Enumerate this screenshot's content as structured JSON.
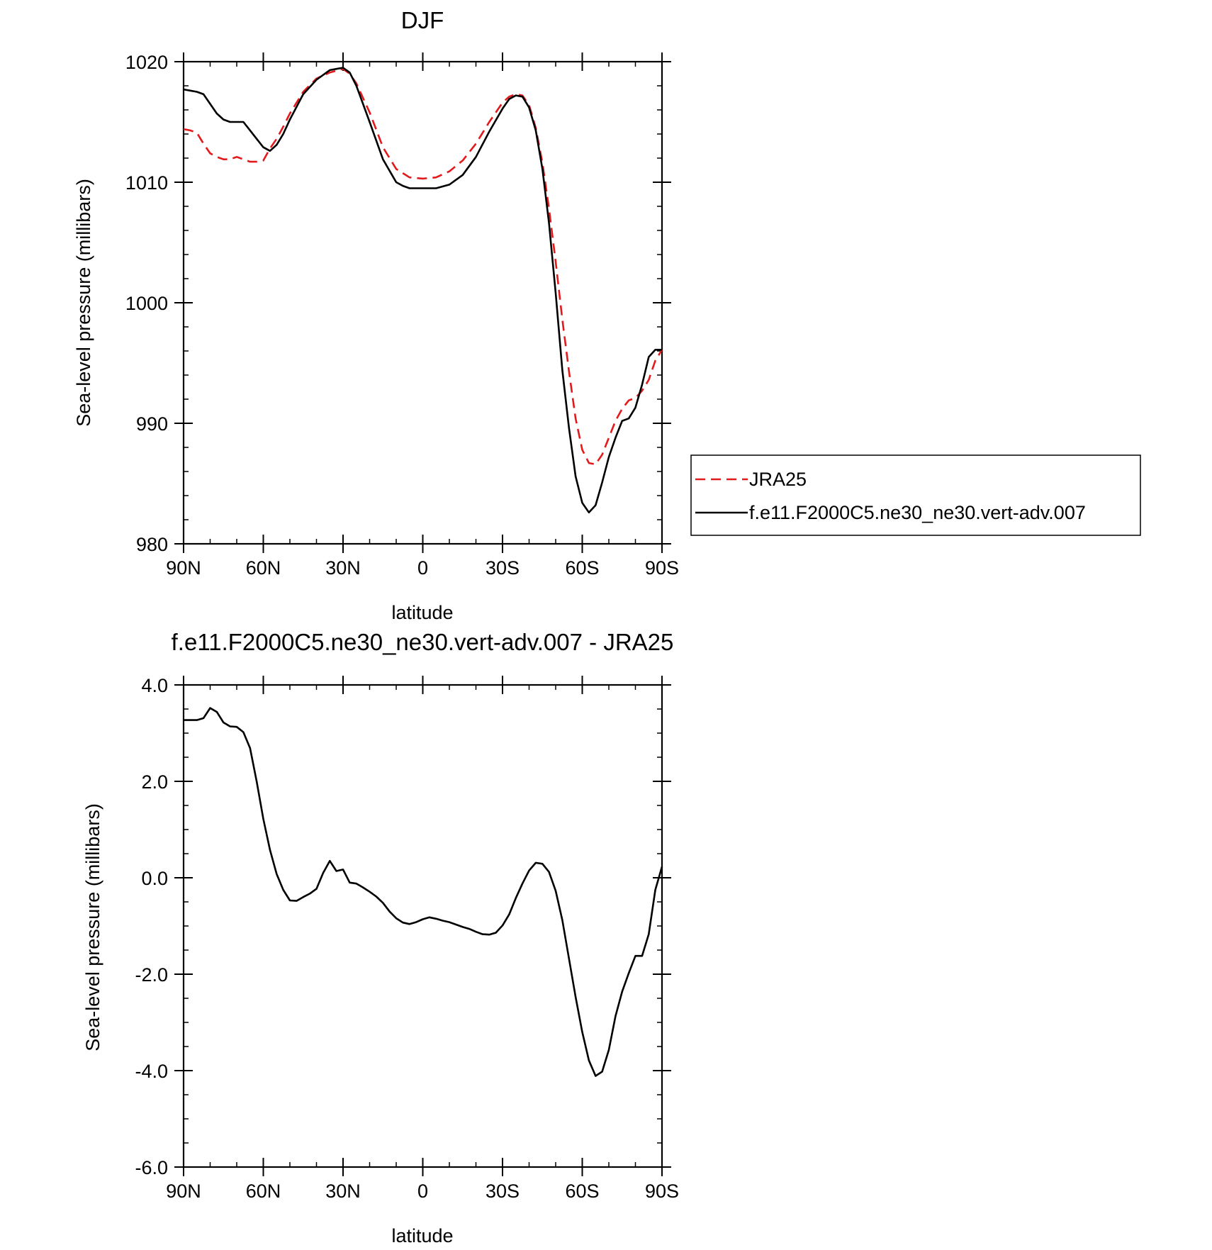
{
  "chart_data": [
    {
      "type": "line",
      "title": "DJF",
      "xlabel": "latitude",
      "ylabel": "Sea-level pressure (millibars)",
      "xlim": [
        90,
        -90
      ],
      "ylim": [
        980,
        1020
      ],
      "xticks": [
        {
          "value": 90,
          "label": "90N"
        },
        {
          "value": 60,
          "label": "60N"
        },
        {
          "value": 30,
          "label": "30N"
        },
        {
          "value": 0,
          "label": "0"
        },
        {
          "value": -30,
          "label": "30S"
        },
        {
          "value": -60,
          "label": "60S"
        },
        {
          "value": -90,
          "label": "90S"
        }
      ],
      "yticks": [
        {
          "value": 1020,
          "label": "1020"
        },
        {
          "value": 1010,
          "label": "1010"
        },
        {
          "value": 1000,
          "label": "1000"
        },
        {
          "value": 990,
          "label": "990"
        },
        {
          "value": 980,
          "label": "980"
        }
      ],
      "grid": false,
      "legend_position": "right",
      "series": [
        {
          "name": "JRA25",
          "color": "#e31a1c",
          "dashed": true,
          "x": [
            90,
            87.5,
            85,
            82.5,
            80,
            77.5,
            75,
            72.5,
            70,
            67.5,
            65,
            62.5,
            60,
            57.5,
            55,
            52.5,
            50,
            45,
            40,
            35,
            30,
            27.5,
            25,
            20,
            15,
            10,
            5,
            0,
            -5,
            -10,
            -15,
            -20,
            -25,
            -30,
            -32.5,
            -35,
            -37.5,
            -40,
            -42.5,
            -45,
            -47.5,
            -50,
            -52.5,
            -55,
            -57.5,
            -60,
            -62.5,
            -65,
            -67.5,
            -70,
            -72.5,
            -75,
            -77.5,
            -80,
            -82.5,
            -85,
            -87.5,
            -90
          ],
          "values": [
            1014.4,
            1014.3,
            1014.1,
            1013.2,
            1012.4,
            1012.1,
            1011.9,
            1011.9,
            1012.1,
            1011.9,
            1011.7,
            1011.7,
            1011.8,
            1012.8,
            1013.6,
            1014.6,
            1015.7,
            1017.5,
            1018.6,
            1019.1,
            1019.4,
            1019.0,
            1018.2,
            1015.8,
            1012.9,
            1011.1,
            1010.4,
            1010.3,
            1010.4,
            1010.9,
            1011.8,
            1013.2,
            1015.0,
            1016.6,
            1017.1,
            1017.3,
            1017.2,
            1016.4,
            1014.5,
            1011.6,
            1007.8,
            1003.4,
            998.6,
            994.3,
            990.4,
            987.8,
            986.7,
            986.6,
            987.4,
            988.8,
            990.2,
            991.2,
            991.9,
            992.1,
            992.7,
            993.6,
            995.2,
            996.1
          ]
        },
        {
          "name": "f.e11.F2000C5.ne30_ne30.vert-adv.007",
          "color": "#000000",
          "dashed": false,
          "x": [
            90,
            87.5,
            85,
            82.5,
            80,
            77.5,
            75,
            72.5,
            70,
            67.5,
            65,
            62.5,
            60,
            57.5,
            55,
            52.5,
            50,
            45,
            40,
            35,
            32.5,
            30,
            27.5,
            25,
            20,
            15,
            10,
            7.5,
            5,
            2.5,
            0,
            -5,
            -10,
            -15,
            -20,
            -25,
            -30,
            -32.5,
            -35,
            -37.5,
            -40,
            -42.5,
            -45,
            -47.5,
            -50,
            -52.5,
            -55,
            -57.5,
            -60,
            -62.5,
            -65,
            -67.5,
            -70,
            -72.5,
            -75,
            -77.5,
            -80,
            -82.5,
            -85,
            -87.5,
            -90
          ],
          "values": [
            1017.7,
            1017.6,
            1017.5,
            1017.3,
            1016.5,
            1015.7,
            1015.2,
            1015.0,
            1015.0,
            1015.0,
            1014.3,
            1013.6,
            1012.9,
            1012.6,
            1013.1,
            1014.0,
            1015.2,
            1017.3,
            1018.5,
            1019.3,
            1019.4,
            1019.5,
            1019.1,
            1018.0,
            1015.0,
            1011.9,
            1010.0,
            1009.7,
            1009.5,
            1009.5,
            1009.5,
            1009.5,
            1009.8,
            1010.6,
            1012.1,
            1014.2,
            1016.1,
            1016.9,
            1017.2,
            1017.1,
            1016.2,
            1014.3,
            1011.1,
            1006.6,
            1000.8,
            994.4,
            989.6,
            985.6,
            983.4,
            982.6,
            983.2,
            985.1,
            987.2,
            988.8,
            990.2,
            990.4,
            991.3,
            993.2,
            995.5,
            996.1,
            996.1
          ]
        }
      ]
    },
    {
      "type": "line",
      "title": "f.e11.F2000C5.ne30_ne30.vert-adv.007 - JRA25",
      "xlabel": "latitude",
      "ylabel": "Sea-level pressure (millibars)",
      "xlim": [
        90,
        -90
      ],
      "ylim": [
        -6,
        4
      ],
      "xticks": [
        {
          "value": 90,
          "label": "90N"
        },
        {
          "value": 60,
          "label": "60N"
        },
        {
          "value": 30,
          "label": "30N"
        },
        {
          "value": 0,
          "label": "0"
        },
        {
          "value": -30,
          "label": "30S"
        },
        {
          "value": -60,
          "label": "60S"
        },
        {
          "value": -90,
          "label": "90S"
        }
      ],
      "yticks": [
        {
          "value": 4,
          "label": "4.0"
        },
        {
          "value": 2,
          "label": "2.0"
        },
        {
          "value": 0,
          "label": "0.0"
        },
        {
          "value": -2,
          "label": "-2.0"
        },
        {
          "value": -4,
          "label": "-4.0"
        },
        {
          "value": -6,
          "label": "-6.0"
        }
      ],
      "grid": false,
      "series": [
        {
          "color": "#000000",
          "dashed": false,
          "x": [
            90,
            87.5,
            85,
            82.5,
            80,
            77.5,
            75,
            72.5,
            70,
            67.5,
            65,
            62.5,
            60,
            57.5,
            55,
            52.5,
            50,
            47.5,
            45,
            42.5,
            40,
            37.5,
            35,
            32.5,
            30,
            27.5,
            25,
            22.5,
            20,
            17.5,
            15,
            12.5,
            10,
            7.5,
            5,
            2.5,
            0,
            -2.5,
            -5,
            -7.5,
            -10,
            -12.5,
            -15,
            -17.5,
            -20,
            -22.5,
            -25,
            -27.5,
            -30,
            -32.5,
            -35,
            -37.5,
            -40,
            -42.5,
            -45,
            -47.5,
            -50,
            -52.5,
            -55,
            -57.5,
            -60,
            -62.5,
            -65,
            -67.5,
            -70,
            -72.5,
            -75,
            -77.5,
            -80,
            -82.5,
            -85,
            -87.5,
            -90
          ],
          "values": [
            3.27,
            3.27,
            3.27,
            3.31,
            3.52,
            3.44,
            3.22,
            3.14,
            3.13,
            3.02,
            2.69,
            2.0,
            1.22,
            0.58,
            0.08,
            -0.25,
            -0.47,
            -0.48,
            -0.4,
            -0.33,
            -0.23,
            0.1,
            0.35,
            0.14,
            0.17,
            -0.1,
            -0.12,
            -0.2,
            -0.29,
            -0.39,
            -0.52,
            -0.7,
            -0.84,
            -0.93,
            -0.96,
            -0.92,
            -0.86,
            -0.82,
            -0.85,
            -0.89,
            -0.92,
            -0.97,
            -1.02,
            -1.06,
            -1.12,
            -1.17,
            -1.18,
            -1.14,
            -0.99,
            -0.76,
            -0.42,
            -0.12,
            0.15,
            0.31,
            0.29,
            0.12,
            -0.27,
            -0.88,
            -1.68,
            -2.47,
            -3.2,
            -3.79,
            -4.11,
            -4.02,
            -3.57,
            -2.87,
            -2.36,
            -1.98,
            -1.62,
            -1.62,
            -1.17,
            -0.25,
            0.23
          ]
        }
      ]
    }
  ]
}
